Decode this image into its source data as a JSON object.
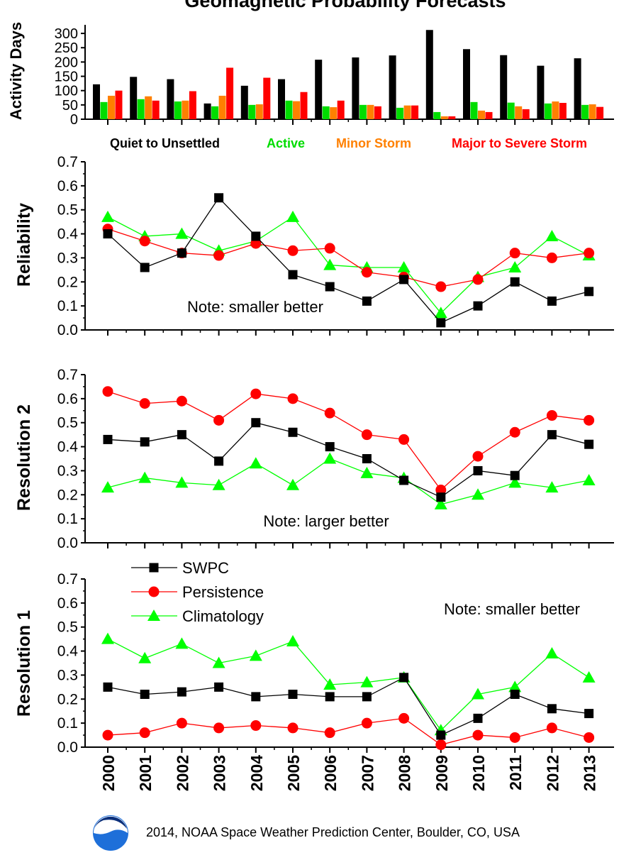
{
  "title": "Geomagnetic Probability Forecasts",
  "footer": "2014, NOAA Space Weather Prediction Center, Boulder, CO, USA",
  "logo_text": "NOAA",
  "colors": {
    "swpc": "#000000",
    "persistence": "#ff0000",
    "climatology": "#00ff00",
    "quiet": "#000000",
    "active": "#00dd00",
    "minor": "#ff8000",
    "major": "#ff0000"
  },
  "chart_data": [
    {
      "type": "bar",
      "ylabel": "Activity Days",
      "ylim": [
        0,
        330
      ],
      "yticks": [
        "0",
        "50",
        "100",
        "150",
        "200",
        "250",
        "300"
      ],
      "categories": [
        "2000",
        "2001",
        "2002",
        "2003",
        "2004",
        "2005",
        "2006",
        "2007",
        "2008",
        "2009",
        "2010",
        "2011",
        "2012",
        "2013"
      ],
      "series": [
        {
          "name": "Quiet to Unsettled",
          "color": "#000000",
          "values": [
            122,
            148,
            140,
            55,
            117,
            140,
            208,
            216,
            223,
            312,
            245,
            224,
            187,
            213
          ]
        },
        {
          "name": "Active",
          "color": "#00dd00",
          "values": [
            60,
            70,
            62,
            45,
            50,
            65,
            45,
            50,
            40,
            25,
            60,
            58,
            55,
            50
          ]
        },
        {
          "name": "Minor Storm",
          "color": "#ff8000",
          "values": [
            82,
            80,
            65,
            82,
            52,
            63,
            42,
            50,
            48,
            10,
            30,
            45,
            62,
            52
          ]
        },
        {
          "name": "Major to Severe Storm",
          "color": "#ff0000",
          "values": [
            100,
            65,
            98,
            180,
            145,
            95,
            65,
            45,
            48,
            10,
            25,
            35,
            57,
            43
          ]
        }
      ]
    },
    {
      "type": "line",
      "ylabel": "Reliability",
      "ylim": [
        0.0,
        0.7
      ],
      "yticks": [
        "0.0",
        "0.1",
        "0.2",
        "0.3",
        "0.4",
        "0.5",
        "0.6",
        "0.7"
      ],
      "annotation": "Note: smaller better",
      "x": [
        "2000",
        "2001",
        "2002",
        "2003",
        "2004",
        "2005",
        "2006",
        "2007",
        "2008",
        "2009",
        "2010",
        "2011",
        "2012",
        "2013"
      ],
      "series": [
        {
          "name": "SWPC",
          "values": [
            0.4,
            0.26,
            0.32,
            0.55,
            0.39,
            0.23,
            0.18,
            0.12,
            0.21,
            0.03,
            0.1,
            0.2,
            0.12,
            0.16
          ]
        },
        {
          "name": "Persistence",
          "values": [
            0.42,
            0.37,
            0.32,
            0.31,
            0.36,
            0.33,
            0.34,
            0.24,
            0.22,
            0.18,
            0.21,
            0.32,
            0.3,
            0.32
          ]
        },
        {
          "name": "Climatology",
          "values": [
            0.47,
            0.39,
            0.4,
            0.33,
            0.37,
            0.47,
            0.27,
            0.26,
            0.26,
            0.07,
            0.22,
            0.26,
            0.39,
            0.31
          ]
        }
      ]
    },
    {
      "type": "line",
      "ylabel": "Resolution 2",
      "ylim": [
        0.0,
        0.7
      ],
      "yticks": [
        "0.0",
        "0.1",
        "0.2",
        "0.3",
        "0.4",
        "0.5",
        "0.6",
        "0.7"
      ],
      "annotation": "Note: larger better",
      "x": [
        "2000",
        "2001",
        "2002",
        "2003",
        "2004",
        "2005",
        "2006",
        "2007",
        "2008",
        "2009",
        "2010",
        "2011",
        "2012",
        "2013"
      ],
      "series": [
        {
          "name": "SWPC",
          "values": [
            0.43,
            0.42,
            0.45,
            0.34,
            0.5,
            0.46,
            0.4,
            0.35,
            0.26,
            0.19,
            0.3,
            0.28,
            0.45,
            0.41
          ]
        },
        {
          "name": "Persistence",
          "values": [
            0.63,
            0.58,
            0.59,
            0.51,
            0.62,
            0.6,
            0.54,
            0.45,
            0.43,
            0.22,
            0.36,
            0.46,
            0.53,
            0.51
          ]
        },
        {
          "name": "Climatology",
          "values": [
            0.23,
            0.27,
            0.25,
            0.24,
            0.33,
            0.24,
            0.35,
            0.29,
            0.27,
            0.16,
            0.2,
            0.25,
            0.23,
            0.26
          ]
        }
      ]
    },
    {
      "type": "line",
      "ylabel": "Resolution 1",
      "ylim": [
        0.0,
        0.7
      ],
      "yticks": [
        "0.0",
        "0.1",
        "0.2",
        "0.3",
        "0.4",
        "0.5",
        "0.6",
        "0.7"
      ],
      "annotation": "Note: smaller better",
      "x": [
        "2000",
        "2001",
        "2002",
        "2003",
        "2004",
        "2005",
        "2006",
        "2007",
        "2008",
        "2009",
        "2010",
        "2011",
        "2012",
        "2013"
      ],
      "legend": [
        "SWPC",
        "Persistence",
        "Climatology"
      ],
      "series": [
        {
          "name": "SWPC",
          "values": [
            0.25,
            0.22,
            0.23,
            0.25,
            0.21,
            0.22,
            0.21,
            0.21,
            0.29,
            0.05,
            0.12,
            0.22,
            0.16,
            0.14
          ]
        },
        {
          "name": "Persistence",
          "values": [
            0.05,
            0.06,
            0.1,
            0.08,
            0.09,
            0.08,
            0.06,
            0.1,
            0.12,
            0.01,
            0.05,
            0.04,
            0.08,
            0.04
          ]
        },
        {
          "name": "Climatology",
          "values": [
            0.45,
            0.37,
            0.43,
            0.35,
            0.38,
            0.44,
            0.26,
            0.27,
            0.29,
            0.07,
            0.22,
            0.25,
            0.39,
            0.29
          ]
        }
      ]
    }
  ]
}
